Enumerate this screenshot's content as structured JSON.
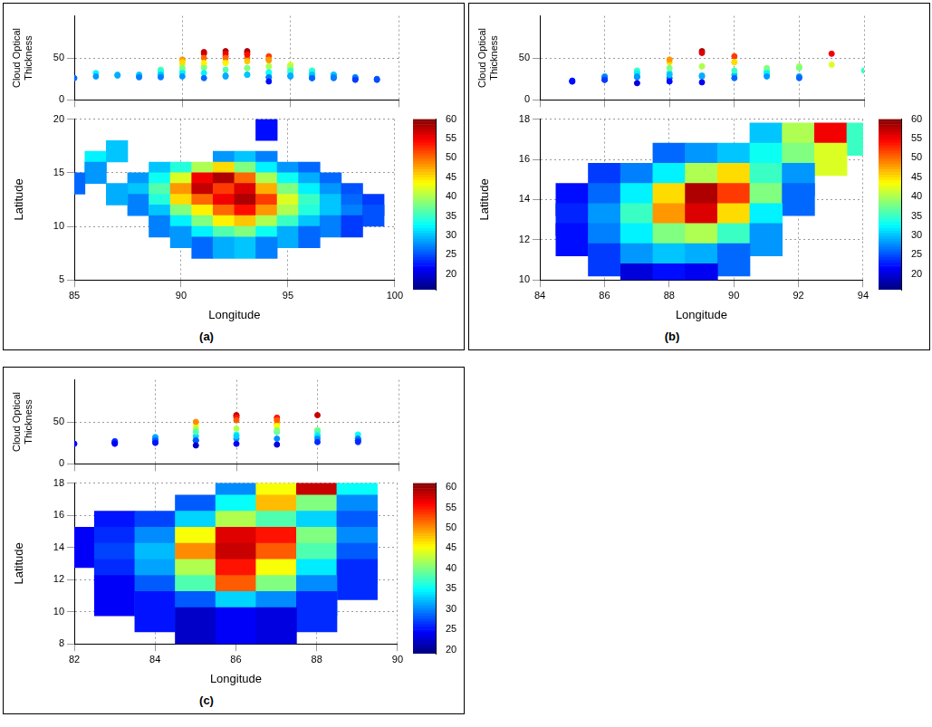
{
  "chart_data": [
    {
      "type": "heatmap",
      "panel": "(a)",
      "x_label": "Longitude",
      "y_label": "Latitude",
      "z_label": "Cloud Optical Thickness",
      "xlim": [
        85,
        100
      ],
      "xticks": [
        85,
        90,
        95,
        100
      ],
      "ylim": [
        5,
        20
      ],
      "yticks": [
        5,
        10,
        15,
        20
      ],
      "zlim": [
        0,
        100
      ],
      "zticks": [
        0,
        50
      ],
      "grid": true,
      "colorbar": {
        "range": [
          16,
          60
        ],
        "ticks": [
          20,
          25,
          30,
          35,
          40,
          45,
          50,
          55,
          60
        ]
      },
      "cells": [
        [
          92,
          16,
          28
        ],
        [
          93,
          16,
          30
        ],
        [
          94,
          16,
          27
        ],
        [
          89,
          15,
          30
        ],
        [
          90,
          15,
          34
        ],
        [
          91,
          15,
          40
        ],
        [
          92,
          15,
          45
        ],
        [
          93,
          15,
          38
        ],
        [
          94,
          15,
          32
        ],
        [
          95,
          15,
          28
        ],
        [
          96,
          15,
          26
        ],
        [
          88,
          14,
          28
        ],
        [
          89,
          14,
          33
        ],
        [
          90,
          14,
          42
        ],
        [
          91,
          14,
          55
        ],
        [
          92,
          14,
          58
        ],
        [
          93,
          14,
          50
        ],
        [
          94,
          14,
          40
        ],
        [
          95,
          14,
          33
        ],
        [
          96,
          14,
          29
        ],
        [
          97,
          14,
          26
        ],
        [
          88,
          13,
          30
        ],
        [
          89,
          13,
          36
        ],
        [
          90,
          13,
          48
        ],
        [
          91,
          13,
          57
        ],
        [
          92,
          13,
          52
        ],
        [
          93,
          13,
          56
        ],
        [
          94,
          13,
          47
        ],
        [
          95,
          13,
          38
        ],
        [
          96,
          13,
          32
        ],
        [
          97,
          13,
          28
        ],
        [
          98,
          13,
          25
        ],
        [
          88,
          12,
          27
        ],
        [
          89,
          12,
          34
        ],
        [
          90,
          12,
          45
        ],
        [
          91,
          12,
          50
        ],
        [
          92,
          12,
          55
        ],
        [
          93,
          12,
          58
        ],
        [
          94,
          12,
          52
        ],
        [
          95,
          12,
          42
        ],
        [
          96,
          12,
          35
        ],
        [
          97,
          12,
          30
        ],
        [
          98,
          12,
          26
        ],
        [
          99,
          12,
          24
        ],
        [
          89,
          11,
          30
        ],
        [
          90,
          11,
          38
        ],
        [
          91,
          11,
          44
        ],
        [
          92,
          11,
          50
        ],
        [
          93,
          11,
          54
        ],
        [
          94,
          11,
          48
        ],
        [
          95,
          11,
          40
        ],
        [
          96,
          11,
          34
        ],
        [
          97,
          11,
          30
        ],
        [
          98,
          11,
          27
        ],
        [
          99,
          11,
          25
        ],
        [
          89,
          10,
          27
        ],
        [
          90,
          10,
          32
        ],
        [
          91,
          10,
          38
        ],
        [
          92,
          10,
          44
        ],
        [
          93,
          10,
          46
        ],
        [
          94,
          10,
          40
        ],
        [
          95,
          10,
          35
        ],
        [
          96,
          10,
          30
        ],
        [
          97,
          10,
          27
        ],
        [
          98,
          10,
          24
        ],
        [
          90,
          9,
          28
        ],
        [
          91,
          9,
          32
        ],
        [
          92,
          9,
          36
        ],
        [
          93,
          9,
          38
        ],
        [
          94,
          9,
          33
        ],
        [
          95,
          9,
          29
        ],
        [
          96,
          9,
          26
        ],
        [
          91,
          8,
          26
        ],
        [
          92,
          8,
          29
        ],
        [
          93,
          8,
          30
        ],
        [
          94,
          8,
          27
        ],
        [
          86,
          16,
          32
        ],
        [
          86,
          15,
          28
        ],
        [
          87,
          17,
          30
        ],
        [
          85,
          14,
          26
        ],
        [
          87,
          13,
          29
        ],
        [
          94,
          19,
          22
        ]
      ]
    },
    {
      "type": "heatmap",
      "panel": "(b)",
      "x_label": "Longitude",
      "y_label": "Latitude",
      "z_label": "Cloud Optical Thickness",
      "xlim": [
        84,
        94
      ],
      "xticks": [
        84,
        86,
        88,
        90,
        92,
        94
      ],
      "ylim": [
        10,
        18
      ],
      "yticks": [
        10,
        12,
        14,
        16,
        18
      ],
      "zlim": [
        0,
        100
      ],
      "zticks": [
        0,
        50
      ],
      "grid": true,
      "colorbar": {
        "range": [
          16,
          60
        ],
        "ticks": [
          20,
          25,
          30,
          35,
          40,
          45,
          50,
          55,
          60
        ]
      },
      "cells": [
        [
          91,
          17,
          30
        ],
        [
          92,
          17,
          40
        ],
        [
          93,
          17,
          55
        ],
        [
          94,
          17,
          35
        ],
        [
          88,
          16,
          26
        ],
        [
          89,
          16,
          28
        ],
        [
          90,
          16,
          30
        ],
        [
          91,
          16,
          33
        ],
        [
          92,
          16,
          38
        ],
        [
          93,
          16,
          42
        ],
        [
          86,
          15,
          24
        ],
        [
          87,
          15,
          27
        ],
        [
          88,
          15,
          32
        ],
        [
          89,
          15,
          40
        ],
        [
          90,
          15,
          45
        ],
        [
          91,
          15,
          35
        ],
        [
          92,
          15,
          28
        ],
        [
          85,
          14,
          22
        ],
        [
          86,
          14,
          26
        ],
        [
          87,
          14,
          32
        ],
        [
          88,
          14,
          45
        ],
        [
          89,
          14,
          58
        ],
        [
          90,
          14,
          52
        ],
        [
          91,
          14,
          38
        ],
        [
          92,
          14,
          26
        ],
        [
          85,
          13,
          23
        ],
        [
          86,
          13,
          28
        ],
        [
          87,
          13,
          35
        ],
        [
          88,
          13,
          48
        ],
        [
          89,
          13,
          56
        ],
        [
          90,
          13,
          45
        ],
        [
          91,
          13,
          32
        ],
        [
          85,
          12,
          22
        ],
        [
          86,
          12,
          27
        ],
        [
          87,
          12,
          32
        ],
        [
          88,
          12,
          38
        ],
        [
          89,
          12,
          40
        ],
        [
          90,
          12,
          35
        ],
        [
          91,
          12,
          28
        ],
        [
          86,
          11,
          24
        ],
        [
          87,
          11,
          28
        ],
        [
          88,
          11,
          30
        ],
        [
          89,
          11,
          29
        ],
        [
          90,
          11,
          26
        ],
        [
          87,
          10,
          20
        ],
        [
          88,
          10,
          22
        ],
        [
          89,
          10,
          21
        ]
      ]
    },
    {
      "type": "heatmap",
      "panel": "(c)",
      "x_label": "Longitude",
      "y_label": "Latitude",
      "z_label": "Cloud Optical Thickness",
      "xlim": [
        82,
        90
      ],
      "xticks": [
        82,
        84,
        86,
        88,
        90
      ],
      "ylim": [
        8,
        18
      ],
      "yticks": [
        8,
        10,
        12,
        14,
        16,
        18
      ],
      "zlim": [
        0,
        100
      ],
      "zticks": [
        0,
        50
      ],
      "grid": true,
      "colorbar": {
        "range": [
          19,
          61
        ],
        "ticks": [
          20,
          25,
          30,
          35,
          40,
          45,
          50,
          55,
          60
        ]
      },
      "cells": [
        [
          86,
          17,
          30
        ],
        [
          87,
          17,
          45
        ],
        [
          88,
          17,
          58
        ],
        [
          89,
          17,
          35
        ],
        [
          85,
          16,
          28
        ],
        [
          86,
          16,
          35
        ],
        [
          87,
          16,
          48
        ],
        [
          88,
          16,
          40
        ],
        [
          89,
          16,
          30
        ],
        [
          83,
          15,
          25
        ],
        [
          84,
          15,
          27
        ],
        [
          85,
          15,
          33
        ],
        [
          86,
          15,
          42
        ],
        [
          87,
          15,
          38
        ],
        [
          88,
          15,
          33
        ],
        [
          89,
          15,
          28
        ],
        [
          82,
          14,
          24
        ],
        [
          83,
          14,
          26
        ],
        [
          84,
          14,
          30
        ],
        [
          85,
          14,
          45
        ],
        [
          86,
          14,
          57
        ],
        [
          87,
          14,
          55
        ],
        [
          88,
          14,
          40
        ],
        [
          89,
          14,
          30
        ],
        [
          83,
          13,
          27
        ],
        [
          84,
          13,
          32
        ],
        [
          85,
          13,
          50
        ],
        [
          86,
          13,
          58
        ],
        [
          87,
          13,
          52
        ],
        [
          88,
          13,
          38
        ],
        [
          89,
          13,
          28
        ],
        [
          83,
          12,
          26
        ],
        [
          84,
          12,
          31
        ],
        [
          85,
          12,
          42
        ],
        [
          86,
          12,
          55
        ],
        [
          87,
          12,
          45
        ],
        [
          88,
          12,
          34
        ],
        [
          89,
          12,
          26
        ],
        [
          83,
          11,
          24
        ],
        [
          84,
          11,
          28
        ],
        [
          85,
          11,
          38
        ],
        [
          86,
          11,
          52
        ],
        [
          87,
          11,
          40
        ],
        [
          88,
          11,
          30
        ],
        [
          84,
          10,
          25
        ],
        [
          85,
          10,
          28
        ],
        [
          86,
          10,
          33
        ],
        [
          87,
          10,
          30
        ],
        [
          88,
          10,
          26
        ],
        [
          85,
          9,
          22
        ],
        [
          86,
          9,
          24
        ],
        [
          87,
          9,
          23
        ]
      ]
    }
  ]
}
